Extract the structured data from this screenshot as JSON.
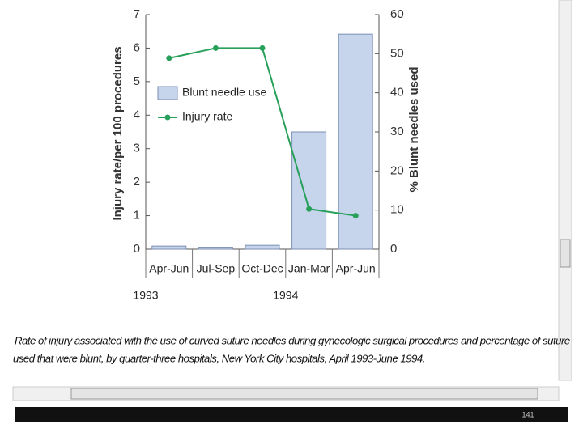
{
  "chart_data": {
    "type": "bar",
    "categories": [
      "Apr-Jun",
      "Jul-Sep",
      "Oct-Dec",
      "Jan-Mar",
      "Apr-Jun"
    ],
    "year_labels": [
      "1993",
      "1994"
    ],
    "ylabel": "Injury rate/per 100 procedures",
    "y2label": "% Blunt needles used",
    "ylim": [
      0,
      7
    ],
    "yticks": [
      0,
      1,
      2,
      3,
      4,
      5,
      6,
      7
    ],
    "y2lim": [
      0,
      60
    ],
    "y2ticks": [
      0,
      10,
      20,
      30,
      40,
      50,
      60
    ],
    "legend": "upper left",
    "series": [
      {
        "name": "Blunt needle use",
        "type": "bar",
        "axis": "y2",
        "color": "#c6d4ec",
        "values": [
          0.8,
          0.5,
          1,
          30,
          55
        ]
      },
      {
        "name": "Injury rate",
        "type": "line",
        "color": "#27a05a",
        "values": [
          5.7,
          6.0,
          6.0,
          1.2,
          1.0
        ]
      }
    ]
  },
  "caption_lines": [
    "Rate of injury associated with the use of curved suture needles during gynecologic surgical procedures and percentage of suture",
    "used that were blunt, by quarter-three hospitals, New York City hospitals, April 1993-June 1994."
  ],
  "page_number": "141"
}
